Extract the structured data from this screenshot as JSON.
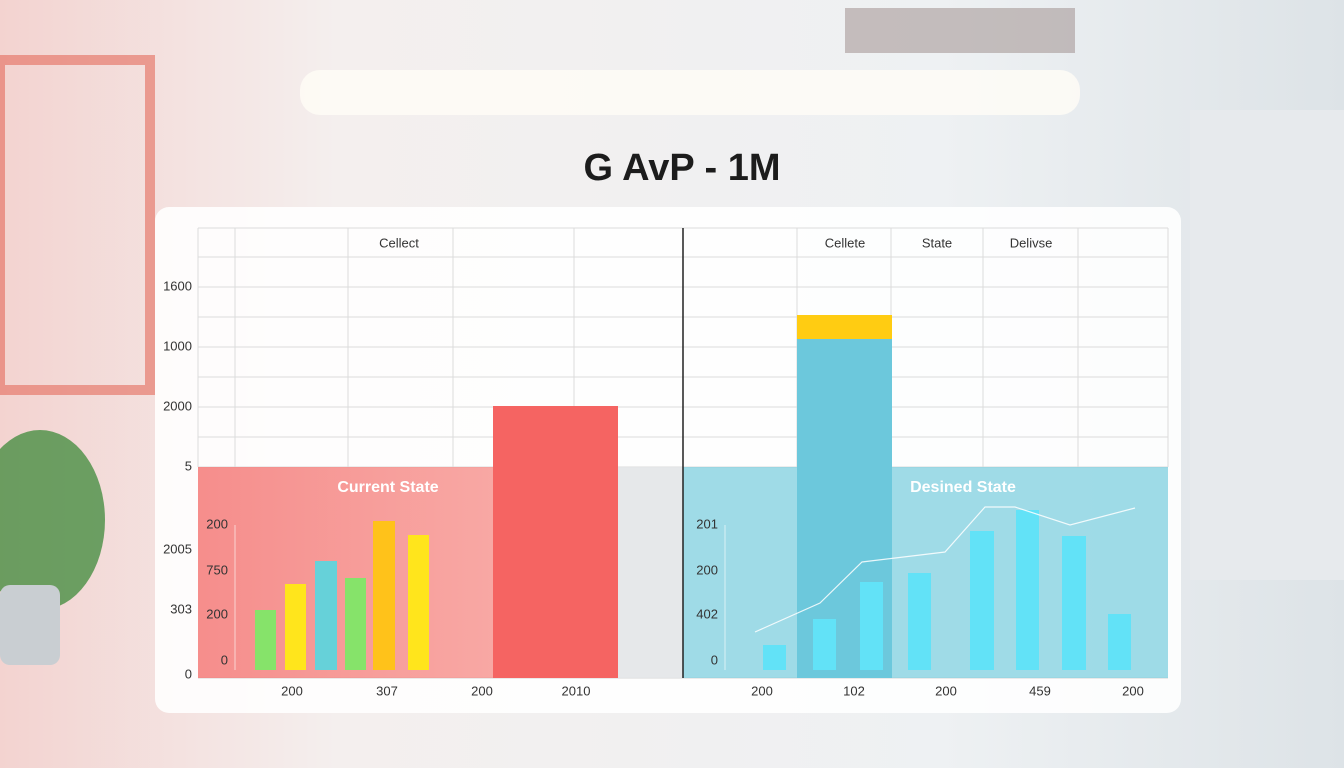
{
  "title": "G AvP - 1M",
  "left_panel": {
    "column_headers": [
      "Cellect"
    ],
    "y_labels": [
      "1600",
      "1000",
      "2000",
      "5",
      "2005",
      "303",
      "0"
    ],
    "overlay_label": "Current State",
    "inner_y_labels": [
      "200",
      "750",
      "200",
      "0"
    ],
    "x_labels": [
      "200",
      "307",
      "200",
      "2010"
    ]
  },
  "right_panel": {
    "column_headers": [
      "Cellete",
      "State",
      "Delivse"
    ],
    "overlay_label": "Desined State",
    "inner_y_labels": [
      "201",
      "200",
      "402",
      "0"
    ],
    "x_labels": [
      "200",
      "102",
      "200",
      "459",
      "200"
    ]
  }
}
